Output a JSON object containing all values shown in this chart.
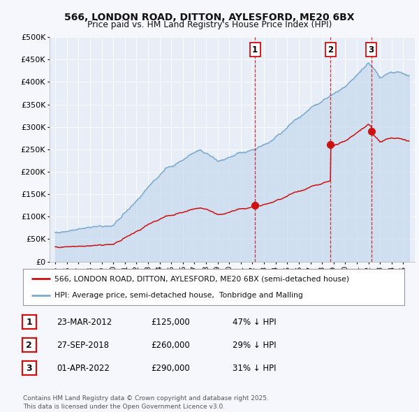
{
  "title1": "566, LONDON ROAD, DITTON, AYLESFORD, ME20 6BX",
  "title2": "Price paid vs. HM Land Registry's House Price Index (HPI)",
  "hpi_color": "#7aaad0",
  "hpi_fill": "#c5d9ee",
  "price_color": "#cc1111",
  "bg_color": "#f5f7fc",
  "plot_bg": "#e8eef8",
  "sale_dates_num": [
    2012.22,
    2018.74,
    2022.25
  ],
  "sale_prices": [
    125000,
    260000,
    290000
  ],
  "sale_labels": [
    "1",
    "2",
    "3"
  ],
  "legend_line1": "566, LONDON ROAD, DITTON, AYLESFORD, ME20 6BX (semi-detached house)",
  "legend_line2": "HPI: Average price, semi-detached house,  Tonbridge and Malling",
  "table_rows": [
    [
      "1",
      "23-MAR-2012",
      "£125,000",
      "47% ↓ HPI"
    ],
    [
      "2",
      "27-SEP-2018",
      "£260,000",
      "29% ↓ HPI"
    ],
    [
      "3",
      "01-APR-2022",
      "£290,000",
      "31% ↓ HPI"
    ]
  ],
  "footer": "Contains HM Land Registry data © Crown copyright and database right 2025.\nThis data is licensed under the Open Government Licence v3.0.",
  "ylim": [
    0,
    500000
  ],
  "ytick_vals": [
    0,
    50000,
    100000,
    150000,
    200000,
    250000,
    300000,
    350000,
    400000,
    450000,
    500000
  ],
  "ytick_labels": [
    "£0",
    "£50K",
    "£100K",
    "£150K",
    "£200K",
    "£250K",
    "£300K",
    "£350K",
    "£400K",
    "£450K",
    "£500K"
  ],
  "xlim": [
    1994.5,
    2026.0
  ],
  "xtick_years": [
    1995,
    1996,
    1997,
    1998,
    1999,
    2000,
    2001,
    2002,
    2003,
    2004,
    2005,
    2006,
    2007,
    2008,
    2009,
    2010,
    2011,
    2012,
    2013,
    2014,
    2015,
    2016,
    2017,
    2018,
    2019,
    2020,
    2021,
    2022,
    2023,
    2024,
    2025
  ]
}
